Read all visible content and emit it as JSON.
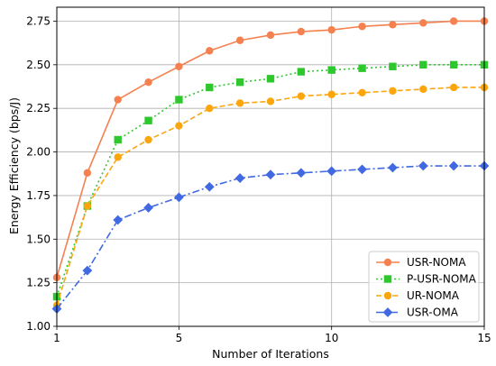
{
  "chart_data": {
    "type": "line",
    "title": "",
    "xlabel": "Number of Iterations",
    "ylabel": "Energy Efficiency (bps/J)",
    "xlim": [
      1,
      15
    ],
    "ylim": [
      1.0,
      2.83
    ],
    "xticks": [
      1,
      5,
      10,
      15
    ],
    "xtick_labels": [
      "1",
      "5",
      "10",
      "15"
    ],
    "yticks": [
      1.0,
      1.25,
      1.5,
      1.75,
      2.0,
      2.25,
      2.5,
      2.75
    ],
    "ytick_labels": [
      "1.00",
      "1.25",
      "1.50",
      "1.75",
      "2.00",
      "2.25",
      "2.50",
      "2.75"
    ],
    "grid": true,
    "legend_position": "lower-right",
    "x": [
      1,
      2,
      3,
      4,
      5,
      6,
      7,
      8,
      9,
      10,
      11,
      12,
      13,
      14,
      15
    ],
    "series": [
      {
        "name": "USR-NOMA",
        "color": "#f4814f",
        "marker": "circle",
        "line_style": "solid",
        "values": [
          1.28,
          1.88,
          2.3,
          2.4,
          2.49,
          2.58,
          2.64,
          2.67,
          2.69,
          2.7,
          2.72,
          2.73,
          2.74,
          2.75,
          2.75
        ]
      },
      {
        "name": "P-USR-NOMA",
        "color": "#2ec82e",
        "marker": "square",
        "line_style": "dotted",
        "values": [
          1.17,
          1.69,
          2.07,
          2.18,
          2.3,
          2.37,
          2.4,
          2.42,
          2.46,
          2.47,
          2.48,
          2.49,
          2.5,
          2.5,
          2.5
        ]
      },
      {
        "name": "UR-NOMA",
        "color": "#fba60c",
        "marker": "circle",
        "line_style": "dashed",
        "values": [
          1.12,
          1.69,
          1.97,
          2.07,
          2.15,
          2.25,
          2.28,
          2.29,
          2.32,
          2.33,
          2.34,
          2.35,
          2.36,
          2.37,
          2.37
        ]
      },
      {
        "name": "USR-OMA",
        "color": "#4169e1",
        "marker": "diamond",
        "line_style": "dashdot",
        "values": [
          1.1,
          1.32,
          1.61,
          1.68,
          1.74,
          1.8,
          1.85,
          1.87,
          1.88,
          1.89,
          1.9,
          1.91,
          1.92,
          1.92,
          1.92
        ]
      }
    ]
  }
}
